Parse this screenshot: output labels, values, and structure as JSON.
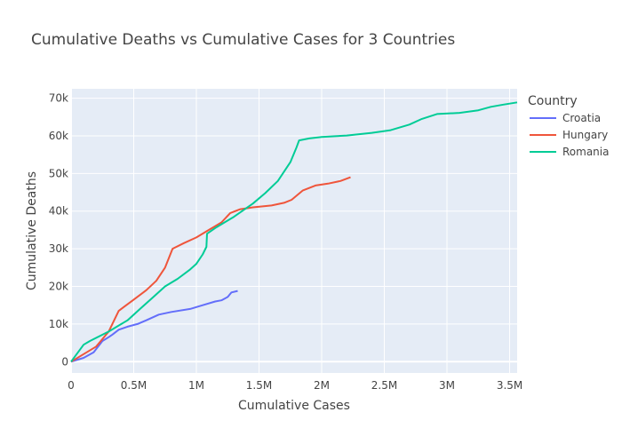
{
  "chart_data": {
    "type": "line",
    "title": "Cumulative Deaths vs Cumulative Cases for 3 Countries",
    "xlabel": "Cumulative Cases",
    "ylabel": "Cumulative Deaths",
    "xlim": [
      0,
      3560000
    ],
    "ylim": [
      -3000,
      72500
    ],
    "xticks": [
      0,
      500000,
      1000000,
      1500000,
      2000000,
      2500000,
      3000000,
      3500000
    ],
    "xtick_labels": [
      "0",
      "0.5M",
      "1M",
      "1.5M",
      "2M",
      "2.5M",
      "3M",
      "3.5M"
    ],
    "yticks": [
      0,
      10000,
      20000,
      30000,
      40000,
      50000,
      60000,
      70000
    ],
    "ytick_labels": [
      "0",
      "10k",
      "20k",
      "30k",
      "40k",
      "50k",
      "60k",
      "70k"
    ],
    "grid": true,
    "legend": {
      "title": "Country",
      "placement": "right"
    },
    "series": [
      {
        "name": "Croatia",
        "color": "#636efa",
        "points": [
          [
            0,
            0
          ],
          [
            100000,
            1000
          ],
          [
            180000,
            2500
          ],
          [
            250000,
            5500
          ],
          [
            300000,
            6500
          ],
          [
            330000,
            7200
          ],
          [
            380000,
            8500
          ],
          [
            450000,
            9300
          ],
          [
            530000,
            10000
          ],
          [
            600000,
            11000
          ],
          [
            700000,
            12500
          ],
          [
            800000,
            13200
          ],
          [
            950000,
            14000
          ],
          [
            1050000,
            15000
          ],
          [
            1150000,
            16000
          ],
          [
            1200000,
            16300
          ],
          [
            1250000,
            17200
          ],
          [
            1280000,
            18400
          ],
          [
            1330000,
            18800
          ]
        ]
      },
      {
        "name": "Hungary",
        "color": "#ef553b",
        "points": [
          [
            0,
            0
          ],
          [
            100000,
            2000
          ],
          [
            200000,
            4000
          ],
          [
            300000,
            8000
          ],
          [
            380000,
            13500
          ],
          [
            420000,
            14500
          ],
          [
            500000,
            16500
          ],
          [
            600000,
            19000
          ],
          [
            680000,
            21500
          ],
          [
            750000,
            25000
          ],
          [
            810000,
            30000
          ],
          [
            900000,
            31500
          ],
          [
            1000000,
            33000
          ],
          [
            1100000,
            35000
          ],
          [
            1200000,
            37000
          ],
          [
            1270000,
            39500
          ],
          [
            1350000,
            40500
          ],
          [
            1450000,
            41000
          ],
          [
            1600000,
            41500
          ],
          [
            1700000,
            42200
          ],
          [
            1760000,
            43000
          ],
          [
            1850000,
            45500
          ],
          [
            1950000,
            46800
          ],
          [
            2050000,
            47300
          ],
          [
            2150000,
            48000
          ],
          [
            2230000,
            49000
          ]
        ]
      },
      {
        "name": "Romania",
        "color": "#00cc96",
        "points": [
          [
            0,
            0
          ],
          [
            100000,
            4500
          ],
          [
            150000,
            5500
          ],
          [
            300000,
            8000
          ],
          [
            450000,
            11000
          ],
          [
            550000,
            14000
          ],
          [
            650000,
            17000
          ],
          [
            750000,
            20000
          ],
          [
            850000,
            22000
          ],
          [
            950000,
            24500
          ],
          [
            1000000,
            26000
          ],
          [
            1050000,
            28500
          ],
          [
            1080000,
            30500
          ],
          [
            1085000,
            34000
          ],
          [
            1150000,
            35500
          ],
          [
            1300000,
            38500
          ],
          [
            1450000,
            42000
          ],
          [
            1550000,
            44800
          ],
          [
            1650000,
            48000
          ],
          [
            1750000,
            53000
          ],
          [
            1800000,
            57000
          ],
          [
            1820000,
            58800
          ],
          [
            1900000,
            59300
          ],
          [
            2000000,
            59700
          ],
          [
            2200000,
            60100
          ],
          [
            2400000,
            60800
          ],
          [
            2550000,
            61500
          ],
          [
            2700000,
            63000
          ],
          [
            2800000,
            64500
          ],
          [
            2920000,
            65800
          ],
          [
            3100000,
            66100
          ],
          [
            3250000,
            66800
          ],
          [
            3350000,
            67700
          ],
          [
            3450000,
            68300
          ],
          [
            3560000,
            68900
          ]
        ]
      }
    ]
  }
}
